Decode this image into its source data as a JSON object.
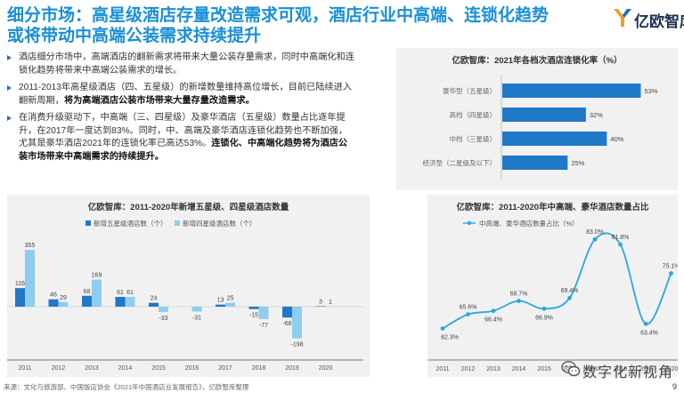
{
  "page": {
    "title_line1": "细分市场：高星级酒店存量改造需求可观，酒店行业中高端、连锁化趋势",
    "title_line2": "或将带动中高端公装需求持续提升",
    "logo_text": "亿欧智库",
    "footer": "来源：文化与旅游部、中国饭店协会《2021年中国酒店业发展报告》，亿欧智库整理",
    "page_number": "9",
    "watermark": "数字化新视角",
    "colors": {
      "title": "#1a8fd6",
      "bar_dark": "#1f78c8",
      "bar_light": "#8fcdf0",
      "line": "#2aa7e0"
    }
  },
  "bullets": [
    {
      "normal": "酒店细分市场中，高端酒店的翻新需求将带来大量公装存量需求，同时中高端化和连锁化趋势将带来中高端公装需求的增长。",
      "bold": ""
    },
    {
      "normal": "2011-2013年高星级酒店（四、五星级）的新增数量维持高位增长，目前已陆续进入翻新周期，",
      "bold": "将为高端酒店公装市场带来大量存量改造需求。"
    },
    {
      "normal": "在消费升级驱动下，中高端（三、四星级）及豪华酒店（五星级）数量占比逐年提升，在2017年一度达到83%。同时，中、高端及豪华酒店连锁化趋势也不断加强，尤其是豪华酒店2021年的连锁化率已高达53%。",
      "bold": "连锁化、中高端化趋势将为酒店公装市场带来中高端需求的持续提升。"
    }
  ],
  "chart_data": [
    {
      "id": "chain_rate",
      "type": "bar",
      "orientation": "horizontal",
      "title": "亿欧智库：2021年各档次酒店连锁化率（%）",
      "categories": [
        "豪华型（五星级）",
        "高档（四星级）",
        "中档（三星级）",
        "经济型（二星级及以下）"
      ],
      "values": [
        53,
        32,
        40,
        25
      ],
      "value_labels": [
        "53%",
        "32%",
        "40%",
        "25%"
      ],
      "xlim": [
        0,
        60
      ],
      "grid": false
    },
    {
      "id": "new_hotels",
      "type": "bar",
      "title": "亿欧智库：2011-2020年新增五星级、四星级酒店数量",
      "categories": [
        "2011",
        "2012",
        "2013",
        "2014",
        "2015",
        "2016",
        "2017",
        "2018",
        "2019",
        "2020"
      ],
      "series": [
        {
          "name": "新增五星级酒店数（个）",
          "values": [
            116,
            46,
            68,
            61,
            24,
            0,
            13,
            -15,
            -68,
            3
          ],
          "labels": [
            "116",
            "46",
            "68",
            "61",
            "24",
            "",
            "13",
            "-15",
            "-68",
            "3"
          ]
        },
        {
          "name": "新增四星级酒店数（个）",
          "values": [
            355,
            29,
            169,
            61,
            -33,
            -31,
            25,
            -77,
            -198,
            1
          ],
          "labels": [
            "355",
            "29",
            "169",
            "61",
            "-33",
            "-31",
            "25",
            "-77",
            "-198",
            "1"
          ]
        }
      ],
      "ylim": [
        -210,
        370
      ],
      "legend": "top",
      "grid": false
    },
    {
      "id": "mid_high_share",
      "type": "line",
      "title": "亿欧智库：2011-2020年中高端、豪华酒店数量占比",
      "categories": [
        "2011",
        "2012",
        "2013",
        "2014",
        "2015",
        "2016",
        "2017",
        "2018",
        "2019",
        "2020"
      ],
      "series": [
        {
          "name": "中高端、豪华酒店数量占比（%）",
          "values": [
            62.3,
            65.6,
            66.4,
            68.7,
            66.9,
            69.4,
            83.0,
            81.8,
            63.4,
            75.1
          ],
          "labels": [
            "62.3%",
            "65.6%",
            "66.4%",
            "68.7%",
            "66.9%",
            "69.4%",
            "83.0%",
            "81.8%",
            "63.4%",
            "75.1%"
          ]
        }
      ],
      "ylim": [
        55,
        88
      ],
      "legend": "top",
      "grid": false
    }
  ]
}
